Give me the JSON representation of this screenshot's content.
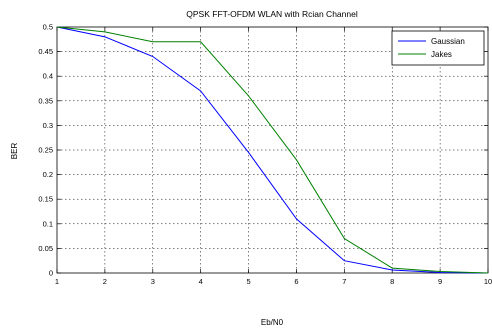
{
  "chart_data": {
    "type": "line",
    "title": "QPSK FFT-OFDM WLAN with Rcian Channel",
    "xlabel": "Eb/N0",
    "ylabel": "BER",
    "xlim": [
      1,
      10
    ],
    "ylim": [
      0,
      0.5
    ],
    "xticks": [
      "1",
      "2",
      "3",
      "4",
      "5",
      "6",
      "7",
      "8",
      "9",
      "10"
    ],
    "yticks": [
      "0",
      "0.05",
      "0.1",
      "0.15",
      "0.2",
      "0.25",
      "0.3",
      "0.35",
      "0.4",
      "0.45",
      "0.5"
    ],
    "grid": true,
    "legend_position": "top-right",
    "x": [
      1,
      2,
      3,
      4,
      5,
      6,
      7,
      8,
      9,
      10
    ],
    "series": [
      {
        "name": "Gaussian",
        "color": "#0000ff",
        "values": [
          0.5,
          0.48,
          0.44,
          0.37,
          0.245,
          0.11,
          0.025,
          0.006,
          0.001,
          0
        ]
      },
      {
        "name": "Jakes",
        "color": "#008000",
        "values": [
          0.5,
          0.49,
          0.47,
          0.47,
          0.36,
          0.23,
          0.07,
          0.01,
          0.003,
          0
        ]
      }
    ]
  }
}
